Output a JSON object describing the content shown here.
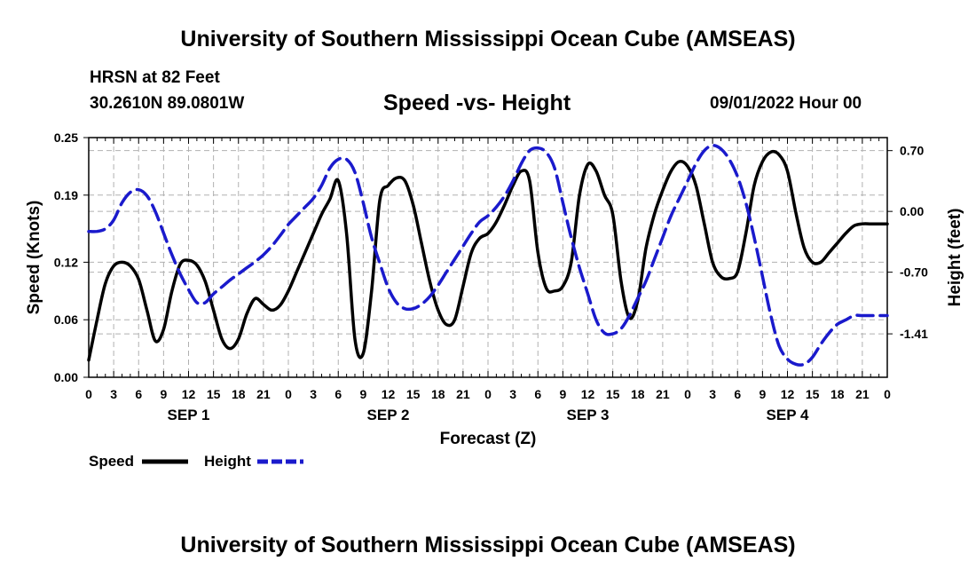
{
  "header": {
    "title_top": "University of Southern Mississippi Ocean Cube (AMSEAS)",
    "station": "HRSN at 82 Feet",
    "coords": "30.2610N  89.0801W",
    "datetime": "09/01/2022 Hour 00",
    "title_bottom": "University of Southern Mississippi Ocean Cube (AMSEAS)"
  },
  "chart_data": {
    "type": "line",
    "title": "Speed -vs- Height",
    "xlabel": "Forecast (Z)",
    "ylabel_left": "Speed (Knots)",
    "ylabel_right": "Height (feet)",
    "x_range": [
      0,
      96
    ],
    "x_tick_labels": [
      "0",
      "3",
      "6",
      "9",
      "12",
      "15",
      "18",
      "21",
      "0",
      "3",
      "6",
      "9",
      "12",
      "15",
      "18",
      "21",
      "0",
      "3",
      "6",
      "9",
      "12",
      "15",
      "18",
      "21",
      "0",
      "3",
      "6",
      "9",
      "12",
      "15",
      "18",
      "21",
      "0"
    ],
    "day_labels": [
      "SEP 1",
      "SEP 2",
      "SEP 3",
      "SEP 4"
    ],
    "y_left": {
      "range": [
        0,
        0.25
      ],
      "ticks": [
        0.0,
        0.06,
        0.12,
        0.19,
        0.25
      ],
      "tick_labels": [
        "0.00",
        "0.06",
        "0.12",
        "0.19",
        "0.25"
      ]
    },
    "y_right": {
      "range": [
        -1.91,
        0.85
      ],
      "ticks": [
        0.7,
        0.0,
        -0.7,
        -1.41
      ],
      "tick_labels": [
        "0.70",
        "0.00",
        "-0.70",
        "-1.41"
      ]
    },
    "grid": true,
    "colors": {
      "speed": "#000000",
      "height": "#1a1acc",
      "grid": "#b0b0b0"
    },
    "series": [
      {
        "name": "Speed",
        "axis": "left",
        "x": [
          0,
          1,
          2,
          3,
          4,
          5,
          6,
          7,
          8,
          9,
          10,
          11,
          12,
          13,
          14,
          15,
          16,
          17,
          18,
          19,
          20,
          21,
          22,
          23,
          24,
          25,
          26,
          27,
          28,
          29,
          30,
          31,
          32,
          33,
          34,
          35,
          36,
          37,
          38,
          39,
          40,
          41,
          42,
          43,
          44,
          45,
          46,
          47,
          48,
          49,
          50,
          51,
          52,
          53,
          54,
          55,
          56,
          57,
          58,
          59,
          60,
          61,
          62,
          63,
          64,
          65,
          66,
          67,
          68,
          69,
          70,
          71,
          72,
          73,
          74,
          75,
          76,
          77,
          78,
          79,
          80,
          81,
          82,
          83,
          84,
          85,
          86,
          87,
          88,
          89,
          90,
          91,
          92,
          93,
          94,
          95,
          96
        ],
        "values": [
          0.018,
          0.06,
          0.098,
          0.116,
          0.12,
          0.116,
          0.102,
          0.07,
          0.038,
          0.05,
          0.09,
          0.118,
          0.122,
          0.117,
          0.1,
          0.07,
          0.04,
          0.03,
          0.04,
          0.066,
          0.082,
          0.076,
          0.07,
          0.075,
          0.09,
          0.11,
          0.13,
          0.15,
          0.17,
          0.186,
          0.205,
          0.15,
          0.04,
          0.025,
          0.09,
          0.185,
          0.2,
          0.208,
          0.205,
          0.18,
          0.14,
          0.1,
          0.07,
          0.055,
          0.06,
          0.095,
          0.13,
          0.145,
          0.15,
          0.162,
          0.18,
          0.2,
          0.215,
          0.205,
          0.13,
          0.093,
          0.09,
          0.095,
          0.12,
          0.19,
          0.222,
          0.215,
          0.19,
          0.17,
          0.1,
          0.062,
          0.08,
          0.135,
          0.17,
          0.195,
          0.215,
          0.225,
          0.22,
          0.2,
          0.16,
          0.12,
          0.105,
          0.103,
          0.11,
          0.15,
          0.2,
          0.225,
          0.235,
          0.232,
          0.215,
          0.172,
          0.135,
          0.12,
          0.12,
          0.13,
          0.14,
          0.15,
          0.158,
          0.16,
          0.16,
          0.16,
          0.16
        ]
      },
      {
        "name": "Height",
        "axis": "right",
        "x": [
          0,
          1,
          2,
          3,
          4,
          5,
          6,
          7,
          8,
          9,
          10,
          11,
          12,
          13,
          14,
          15,
          16,
          17,
          18,
          19,
          20,
          21,
          22,
          23,
          24,
          25,
          26,
          27,
          28,
          29,
          30,
          31,
          32,
          33,
          34,
          35,
          36,
          37,
          38,
          39,
          40,
          41,
          42,
          43,
          44,
          45,
          46,
          47,
          48,
          49,
          50,
          51,
          52,
          53,
          54,
          55,
          56,
          57,
          58,
          59,
          60,
          61,
          62,
          63,
          64,
          65,
          66,
          67,
          68,
          69,
          70,
          71,
          72,
          73,
          74,
          75,
          76,
          77,
          78,
          79,
          80,
          81,
          82,
          83,
          84,
          85,
          86,
          87,
          88,
          89,
          90,
          91,
          92,
          93,
          94,
          95,
          96
        ],
        "values": [
          -0.23,
          -0.23,
          -0.2,
          -0.1,
          0.1,
          0.22,
          0.25,
          0.18,
          0.0,
          -0.25,
          -0.5,
          -0.72,
          -0.9,
          -1.05,
          -1.05,
          -0.95,
          -0.87,
          -0.79,
          -0.72,
          -0.65,
          -0.58,
          -0.5,
          -0.4,
          -0.28,
          -0.15,
          -0.05,
          0.05,
          0.15,
          0.3,
          0.5,
          0.6,
          0.6,
          0.45,
          0.1,
          -0.3,
          -0.6,
          -0.88,
          -1.05,
          -1.12,
          -1.12,
          -1.07,
          -0.98,
          -0.85,
          -0.7,
          -0.55,
          -0.4,
          -0.25,
          -0.12,
          -0.05,
          0.05,
          0.18,
          0.35,
          0.55,
          0.7,
          0.73,
          0.68,
          0.5,
          0.1,
          -0.3,
          -0.65,
          -0.95,
          -1.25,
          -1.4,
          -1.41,
          -1.35,
          -1.2,
          -1.0,
          -0.8,
          -0.55,
          -0.3,
          -0.05,
          0.15,
          0.35,
          0.55,
          0.7,
          0.76,
          0.72,
          0.6,
          0.4,
          0.1,
          -0.3,
          -0.75,
          -1.2,
          -1.55,
          -1.7,
          -1.76,
          -1.76,
          -1.68,
          -1.53,
          -1.4,
          -1.3,
          -1.25,
          -1.2,
          -1.2,
          -1.2,
          -1.2,
          -1.2
        ]
      }
    ],
    "legend": [
      {
        "label": "Speed",
        "style": "solid"
      },
      {
        "label": "Height",
        "style": "dashed"
      }
    ]
  }
}
